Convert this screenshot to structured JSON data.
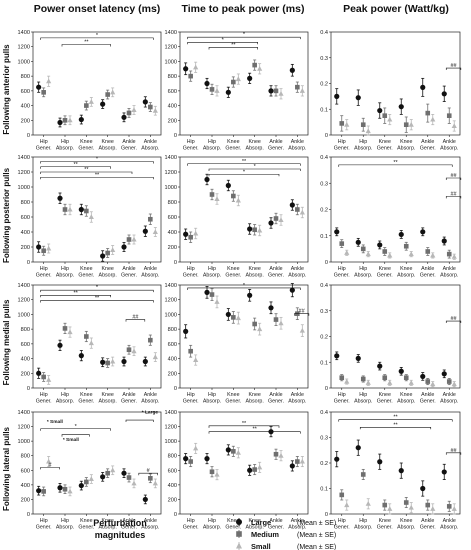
{
  "chart_data": {
    "type": "scatter",
    "column_titles": [
      "Power onset latency (ms)",
      "Time to peak power (ms)",
      "Peak power (Watt/kg)"
    ],
    "row_labels": [
      "Following anterior pulls",
      "Following posterior pulls",
      "Following medial pulls",
      "Following lateral pulls"
    ],
    "categories": [
      [
        "Hip",
        "Gener."
      ],
      [
        "Hip",
        "Absorp."
      ],
      [
        "Knee",
        "Gener."
      ],
      [
        "Knee",
        "Absorp."
      ],
      [
        "Ankle",
        "Gener."
      ],
      [
        "Ankle",
        "Absorp."
      ]
    ],
    "y_axes": [
      {
        "ylim": [
          0,
          1400
        ],
        "ticks": [
          "0",
          "200",
          "400",
          "600",
          "800",
          "1000",
          "1200",
          "1400"
        ]
      },
      {
        "ylim": [
          0,
          1400
        ],
        "ticks": [
          "0",
          "200",
          "400",
          "600",
          "800",
          "1000",
          "1200",
          "1400"
        ]
      },
      {
        "ylim": [
          0,
          0.4
        ],
        "ticks": [
          "0",
          "0.1",
          "0.2",
          "0.3",
          "0.4"
        ]
      }
    ],
    "series_names": [
      "Large",
      "Medium",
      "Small"
    ],
    "panels": [
      {
        "row": 0,
        "col": 0,
        "values": [
          [
            650,
            170,
            210,
            420,
            240,
            450
          ],
          [
            580,
            200,
            400,
            550,
            300,
            380
          ],
          [
            730,
            200,
            450,
            580,
            340,
            330
          ]
        ],
        "errors": [
          [
            70,
            60,
            60,
            60,
            60,
            70
          ],
          [
            60,
            60,
            60,
            60,
            60,
            60
          ],
          [
            70,
            60,
            60,
            60,
            60,
            60
          ]
        ],
        "annotations": [
          {
            "type": "bracket",
            "from": 0,
            "to": 5,
            "level": 1320,
            "label": "*"
          },
          {
            "type": "bracket",
            "from": 1,
            "to": 3,
            "level": 1230,
            "label": "**"
          }
        ]
      },
      {
        "row": 0,
        "col": 1,
        "values": [
          [
            900,
            700,
            580,
            770,
            600,
            880
          ],
          [
            800,
            620,
            720,
            950,
            600,
            650
          ],
          [
            920,
            600,
            760,
            900,
            560,
            600
          ]
        ],
        "errors": [
          [
            80,
            70,
            70,
            70,
            70,
            80
          ],
          [
            70,
            70,
            70,
            70,
            70,
            70
          ],
          [
            70,
            70,
            70,
            70,
            70,
            70
          ]
        ],
        "annotations": [
          {
            "type": "bracket",
            "from": 0,
            "to": 5,
            "level": 1330,
            "label": "*"
          },
          {
            "type": "bracket",
            "from": 0,
            "to": 3,
            "level": 1260,
            "label": "*"
          },
          {
            "type": "bracket",
            "from": 1,
            "to": 3,
            "level": 1190,
            "label": "**"
          }
        ]
      },
      {
        "row": 0,
        "col": 2,
        "values": [
          [
            0.15,
            0.145,
            0.095,
            0.11,
            0.185,
            0.16
          ],
          [
            0.045,
            0.04,
            0.075,
            0.04,
            0.085,
            0.075
          ],
          [
            0.04,
            0.015,
            0.06,
            0.04,
            0.06,
            0.035
          ]
        ],
        "errors": [
          [
            0.03,
            0.03,
            0.03,
            0.03,
            0.035,
            0.03
          ],
          [
            0.03,
            0.025,
            0.03,
            0.03,
            0.035,
            0.03
          ],
          [
            0.02,
            0.02,
            0.02,
            0.02,
            0.02,
            0.02
          ]
        ],
        "annotations": [
          {
            "type": "bracket",
            "from": 5,
            "to": 5.4,
            "level": 0.26,
            "label": "##"
          }
        ]
      },
      {
        "row": 1,
        "col": 0,
        "values": [
          [
            200,
            850,
            700,
            80,
            200,
            410
          ],
          [
            150,
            700,
            680,
            120,
            300,
            570
          ],
          [
            180,
            700,
            600,
            160,
            300,
            400
          ]
        ],
        "errors": [
          [
            70,
            70,
            70,
            70,
            60,
            70
          ],
          [
            60,
            70,
            70,
            60,
            60,
            70
          ],
          [
            60,
            70,
            70,
            60,
            60,
            60
          ]
        ],
        "annotations": [
          {
            "type": "bracket",
            "from": 0,
            "to": 5,
            "level": 1340,
            "label": "*"
          },
          {
            "type": "bracket",
            "from": 0,
            "to": 3,
            "level": 1270,
            "label": "**"
          },
          {
            "type": "bracket",
            "from": 0,
            "to": 4,
            "level": 1200,
            "label": "**"
          },
          {
            "type": "bracket",
            "from": 0,
            "to": 5,
            "level": 1130,
            "label": "**"
          }
        ]
      },
      {
        "row": 1,
        "col": 1,
        "values": [
          [
            370,
            1100,
            1020,
            440,
            520,
            760
          ],
          [
            330,
            900,
            880,
            430,
            580,
            700
          ],
          [
            380,
            840,
            820,
            420,
            560,
            660
          ]
        ],
        "errors": [
          [
            70,
            70,
            70,
            70,
            70,
            70
          ],
          [
            70,
            70,
            70,
            70,
            70,
            70
          ],
          [
            70,
            70,
            70,
            70,
            70,
            70
          ]
        ],
        "annotations": [
          {
            "type": "bracket",
            "from": 0,
            "to": 5,
            "level": 1310,
            "label": "**"
          },
          {
            "type": "bracket",
            "from": 1,
            "to": 5,
            "level": 1240,
            "label": "*"
          },
          {
            "type": "bracket",
            "from": 1,
            "to": 4,
            "level": 1170,
            "label": "*"
          }
        ]
      },
      {
        "row": 1,
        "col": 2,
        "values": [
          [
            0.115,
            0.075,
            0.065,
            0.105,
            0.115,
            0.08
          ],
          [
            0.07,
            0.05,
            0.04,
            0.06,
            0.04,
            0.03
          ],
          [
            0.035,
            0.03,
            0.025,
            0.03,
            0.025,
            0.02
          ]
        ],
        "errors": [
          [
            0.015,
            0.015,
            0.015,
            0.015,
            0.015,
            0.015
          ],
          [
            0.015,
            0.015,
            0.015,
            0.015,
            0.015,
            0.015
          ],
          [
            0.01,
            0.01,
            0.01,
            0.01,
            0.01,
            0.01
          ]
        ],
        "annotations": [
          {
            "type": "bracket",
            "from": 0,
            "to": 5,
            "level": 0.37,
            "label": "**"
          },
          {
            "type": "bracket",
            "from": 5,
            "to": 5.4,
            "level": 0.32,
            "label": "##"
          },
          {
            "type": "bracket",
            "from": 5,
            "to": 5.4,
            "level": 0.25,
            "label": "##"
          }
        ]
      },
      {
        "row": 2,
        "col": 0,
        "values": [
          [
            200,
            580,
            440,
            350,
            360,
            360
          ],
          [
            150,
            810,
            700,
            340,
            520,
            650
          ],
          [
            110,
            760,
            610,
            360,
            500,
            420
          ]
        ],
        "errors": [
          [
            70,
            70,
            70,
            60,
            60,
            60
          ],
          [
            60,
            70,
            70,
            60,
            60,
            70
          ],
          [
            60,
            70,
            70,
            60,
            60,
            60
          ]
        ],
        "annotations": [
          {
            "type": "bracket",
            "from": 0,
            "to": 5,
            "level": 1330,
            "label": "*"
          },
          {
            "type": "bracket",
            "from": 0,
            "to": 3,
            "level": 1260,
            "label": "**"
          },
          {
            "type": "bracket",
            "from": 0,
            "to": 5,
            "level": 1190,
            "label": "**"
          },
          {
            "type": "bracket",
            "from": 4,
            "to": 4.6,
            "level": 930,
            "label": "##"
          }
        ]
      },
      {
        "row": 2,
        "col": 1,
        "values": [
          [
            770,
            1300,
            1000,
            1260,
            1090,
            1330
          ],
          [
            500,
            1270,
            960,
            870,
            930,
            1010
          ],
          [
            380,
            1170,
            950,
            800,
            880,
            780
          ]
        ],
        "errors": [
          [
            90,
            80,
            80,
            80,
            80,
            90
          ],
          [
            80,
            80,
            80,
            80,
            80,
            80
          ],
          [
            70,
            80,
            80,
            80,
            80,
            80
          ]
        ],
        "annotations": [
          {
            "type": "bracket",
            "from": 0,
            "to": 5,
            "level": 1360,
            "label": "*"
          },
          {
            "type": "bracket",
            "from": 5,
            "to": 5.4,
            "level": 1010,
            "label": "##"
          }
        ]
      },
      {
        "row": 2,
        "col": 2,
        "values": [
          [
            0.125,
            0.115,
            0.085,
            0.065,
            0.045,
            0.055
          ],
          [
            0.04,
            0.035,
            0.04,
            0.04,
            0.025,
            0.025
          ],
          [
            0.025,
            0.02,
            0.02,
            0.02,
            0.015,
            0.015
          ]
        ],
        "errors": [
          [
            0.015,
            0.015,
            0.015,
            0.015,
            0.015,
            0.015
          ],
          [
            0.012,
            0.012,
            0.012,
            0.012,
            0.012,
            0.012
          ],
          [
            0.01,
            0.01,
            0.01,
            0.01,
            0.01,
            0.01
          ]
        ],
        "annotations": [
          {
            "type": "bracket",
            "from": 5,
            "to": 5.4,
            "level": 0.26,
            "label": "##"
          }
        ]
      },
      {
        "row": 3,
        "col": 0,
        "values": [
          [
            320,
            360,
            390,
            510,
            560,
            200
          ],
          [
            310,
            340,
            440,
            560,
            500,
            490
          ],
          [
            720,
            310,
            480,
            600,
            420,
            420
          ]
        ],
        "errors": [
          [
            60,
            60,
            60,
            60,
            60,
            60
          ],
          [
            60,
            60,
            60,
            60,
            60,
            60
          ],
          [
            70,
            60,
            60,
            60,
            60,
            60
          ]
        ],
        "annotations": [
          {
            "type": "text",
            "x": 0.15,
            "level": 1250,
            "label": "* Small"
          },
          {
            "type": "text",
            "x": 0.9,
            "level": 1000,
            "label": "* Small"
          },
          {
            "type": "text",
            "x": 4.6,
            "level": 1380,
            "label": "* Large"
          },
          {
            "type": "bracket",
            "from": 0,
            "to": 3,
            "level": 1170,
            "label": "*"
          },
          {
            "type": "bracket",
            "from": 1,
            "to": 2,
            "level": 1090,
            "label": ""
          },
          {
            "type": "bracket",
            "from": 4,
            "to": 5,
            "level": 1290,
            "label": ""
          },
          {
            "type": "bracket",
            "from": 0,
            "to": 0.6,
            "level": 640,
            "label": "#"
          },
          {
            "type": "bracket",
            "from": 4.6,
            "to": 5.2,
            "level": 560,
            "label": "#"
          }
        ]
      },
      {
        "row": 3,
        "col": 1,
        "values": [
          [
            760,
            760,
            880,
            600,
            1130,
            660
          ],
          [
            720,
            580,
            860,
            610,
            820,
            720
          ],
          [
            900,
            540,
            840,
            640,
            800,
            720
          ]
        ],
        "errors": [
          [
            70,
            70,
            70,
            70,
            70,
            70
          ],
          [
            70,
            70,
            70,
            70,
            70,
            70
          ],
          [
            70,
            70,
            70,
            70,
            70,
            70
          ]
        ],
        "annotations": [
          {
            "type": "bracket",
            "from": 1,
            "to": 4,
            "level": 1210,
            "label": "**"
          },
          {
            "type": "bracket",
            "from": 1,
            "to": 5,
            "level": 1130,
            "label": "**"
          }
        ]
      },
      {
        "row": 3,
        "col": 2,
        "values": [
          [
            0.215,
            0.26,
            0.205,
            0.17,
            0.1,
            0.165
          ],
          [
            0.075,
            0.155,
            0.035,
            0.045,
            0.035,
            0.03
          ],
          [
            0.035,
            0.04,
            0.02,
            0.025,
            0.02,
            0.02
          ]
        ],
        "errors": [
          [
            0.03,
            0.03,
            0.03,
            0.03,
            0.03,
            0.03
          ],
          [
            0.02,
            0.02,
            0.02,
            0.02,
            0.02,
            0.02
          ],
          [
            0.02,
            0.02,
            0.02,
            0.02,
            0.02,
            0.02
          ]
        ],
        "annotations": [
          {
            "type": "bracket",
            "from": 0,
            "to": 5,
            "level": 0.37,
            "label": "**"
          },
          {
            "type": "bracket",
            "from": 1,
            "to": 4,
            "level": 0.34,
            "label": "**"
          },
          {
            "type": "bracket",
            "from": 5,
            "to": 5.4,
            "level": 0.24,
            "label": "##"
          }
        ]
      }
    ],
    "legend": {
      "title": "Perturbation magnitudes",
      "entries": [
        {
          "label": "Large",
          "stat": "(Mean ± SE)",
          "color": "#111111"
        },
        {
          "label": "Medium",
          "stat": "(Mean ± SE)",
          "color": "#6f6f6f"
        },
        {
          "label": "Small",
          "stat": "(Mean ± SE)",
          "color": "#b7b7b7"
        }
      ],
      "placement": "bottom"
    },
    "colors": {
      "Large": "#111111",
      "Medium": "#6f6f6f",
      "Small": "#b7b7b7"
    }
  }
}
